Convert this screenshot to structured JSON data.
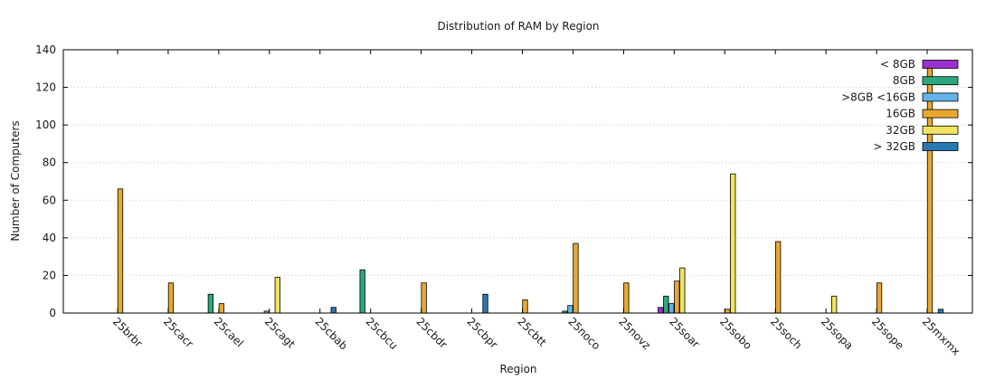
{
  "chart_data": {
    "type": "bar",
    "title": "Distribution of RAM by Region",
    "xlabel": "Region",
    "ylabel": "Number of Computers",
    "ylim": [
      0,
      140
    ],
    "yticks": [
      0,
      20,
      40,
      60,
      80,
      100,
      120,
      140
    ],
    "grid": true,
    "legend_position": "top-right",
    "categories": [
      "25brbr",
      "25cacr",
      "25cael",
      "25cagt",
      "25cbab",
      "25cbcu",
      "25cbdr",
      "25cbpr",
      "25cbtt",
      "25noco",
      "25novz",
      "25soar",
      "25sobo",
      "25soch",
      "25sopa",
      "25sope",
      "25mxmx"
    ],
    "series": [
      {
        "name": "< 8GB",
        "color": "#9b30d0",
        "values": [
          0,
          0,
          0,
          0,
          0,
          0,
          0,
          0,
          0,
          0,
          0,
          3,
          0,
          0,
          0,
          0,
          0
        ]
      },
      {
        "name": "8GB",
        "color": "#2aa87c",
        "values": [
          0,
          0,
          10,
          0,
          0,
          23,
          0,
          0,
          0,
          1,
          0,
          9,
          0,
          0,
          0,
          0,
          0
        ]
      },
      {
        "name": ">8GB  <16GB",
        "color": "#62b4ea",
        "values": [
          0,
          0,
          0,
          1,
          0,
          0,
          0,
          0,
          0,
          4,
          0,
          5,
          0,
          0,
          0,
          0,
          0
        ]
      },
      {
        "name": "16GB",
        "color": "#e8a830",
        "values": [
          66,
          16,
          5,
          0,
          0,
          0,
          16,
          0,
          7,
          37,
          16,
          17,
          2,
          38,
          0,
          16,
          131
        ]
      },
      {
        "name": "32GB",
        "color": "#f0e460",
        "values": [
          0,
          0,
          0,
          19,
          0,
          0,
          0,
          0,
          0,
          0,
          0,
          24,
          74,
          0,
          9,
          0,
          0
        ]
      },
      {
        "name": "> 32GB",
        "color": "#2878b4",
        "values": [
          0,
          0,
          0,
          0,
          3,
          0,
          0,
          10,
          0,
          0,
          0,
          0,
          0,
          0,
          0,
          0,
          2
        ]
      }
    ]
  }
}
